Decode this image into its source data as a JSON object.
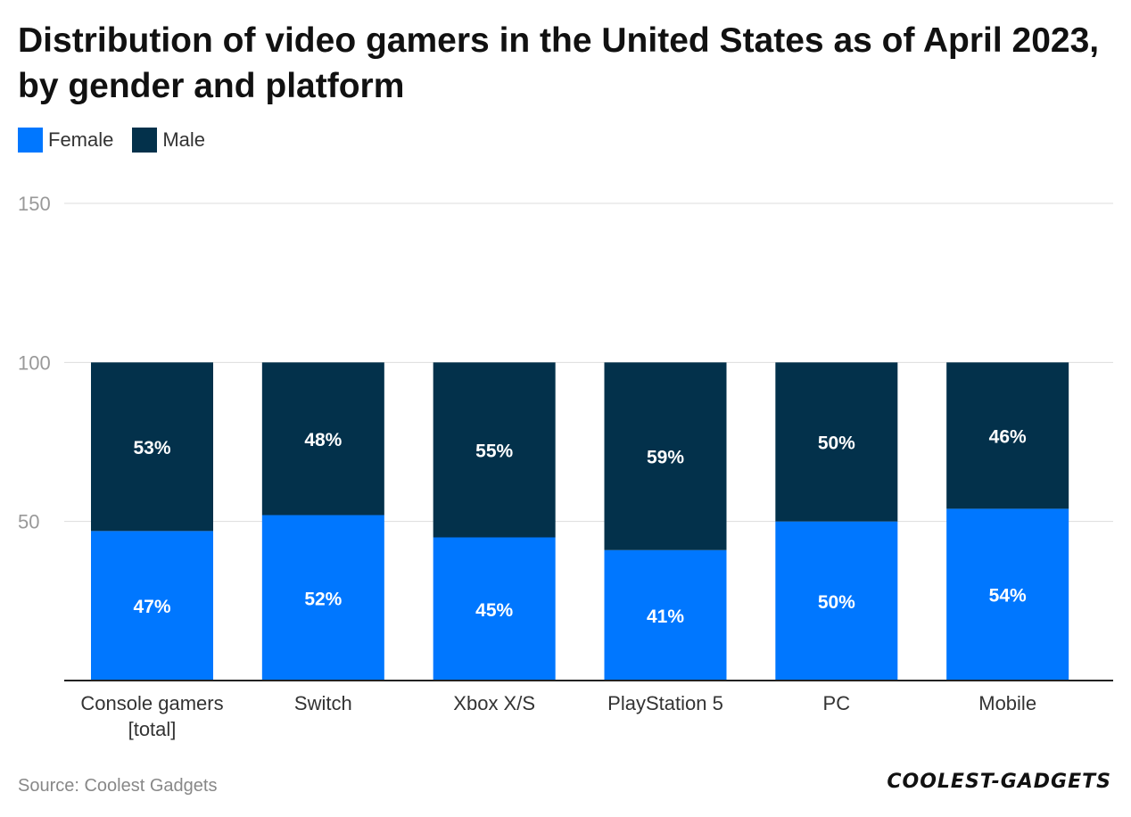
{
  "title": "Distribution of video gamers in the United States as of April 2023, by gender and platform",
  "legend": [
    {
      "label": "Female",
      "color": "#0077ff"
    },
    {
      "label": "Male",
      "color": "#03314b"
    }
  ],
  "source": "Source: Coolest Gadgets",
  "brand": "COOLEST-GADGETS",
  "chart_data": {
    "type": "bar",
    "stacked": true,
    "categories": [
      "Console gamers [total]",
      "Switch",
      "Xbox X/S",
      "PlayStation 5",
      "PC",
      "Mobile"
    ],
    "category_lines": [
      [
        "Console gamers",
        "[total]"
      ],
      [
        "Switch"
      ],
      [
        "Xbox X/S"
      ],
      [
        "PlayStation 5"
      ],
      [
        "PC"
      ],
      [
        "Mobile"
      ]
    ],
    "series": [
      {
        "name": "Female",
        "color": "#0077ff",
        "values": [
          47,
          52,
          45,
          41,
          50,
          54
        ],
        "labels": [
          "47%",
          "52%",
          "45%",
          "41%",
          "50%",
          "54%"
        ]
      },
      {
        "name": "Male",
        "color": "#03314b",
        "values": [
          53,
          48,
          55,
          59,
          50,
          46
        ],
        "labels": [
          "53%",
          "48%",
          "55%",
          "59%",
          "50%",
          "46%"
        ]
      }
    ],
    "ylim": [
      0,
      150
    ],
    "yticks": [
      50,
      100,
      150
    ],
    "grid": true,
    "legend_position": "top-left",
    "xlabel": "",
    "ylabel": ""
  }
}
